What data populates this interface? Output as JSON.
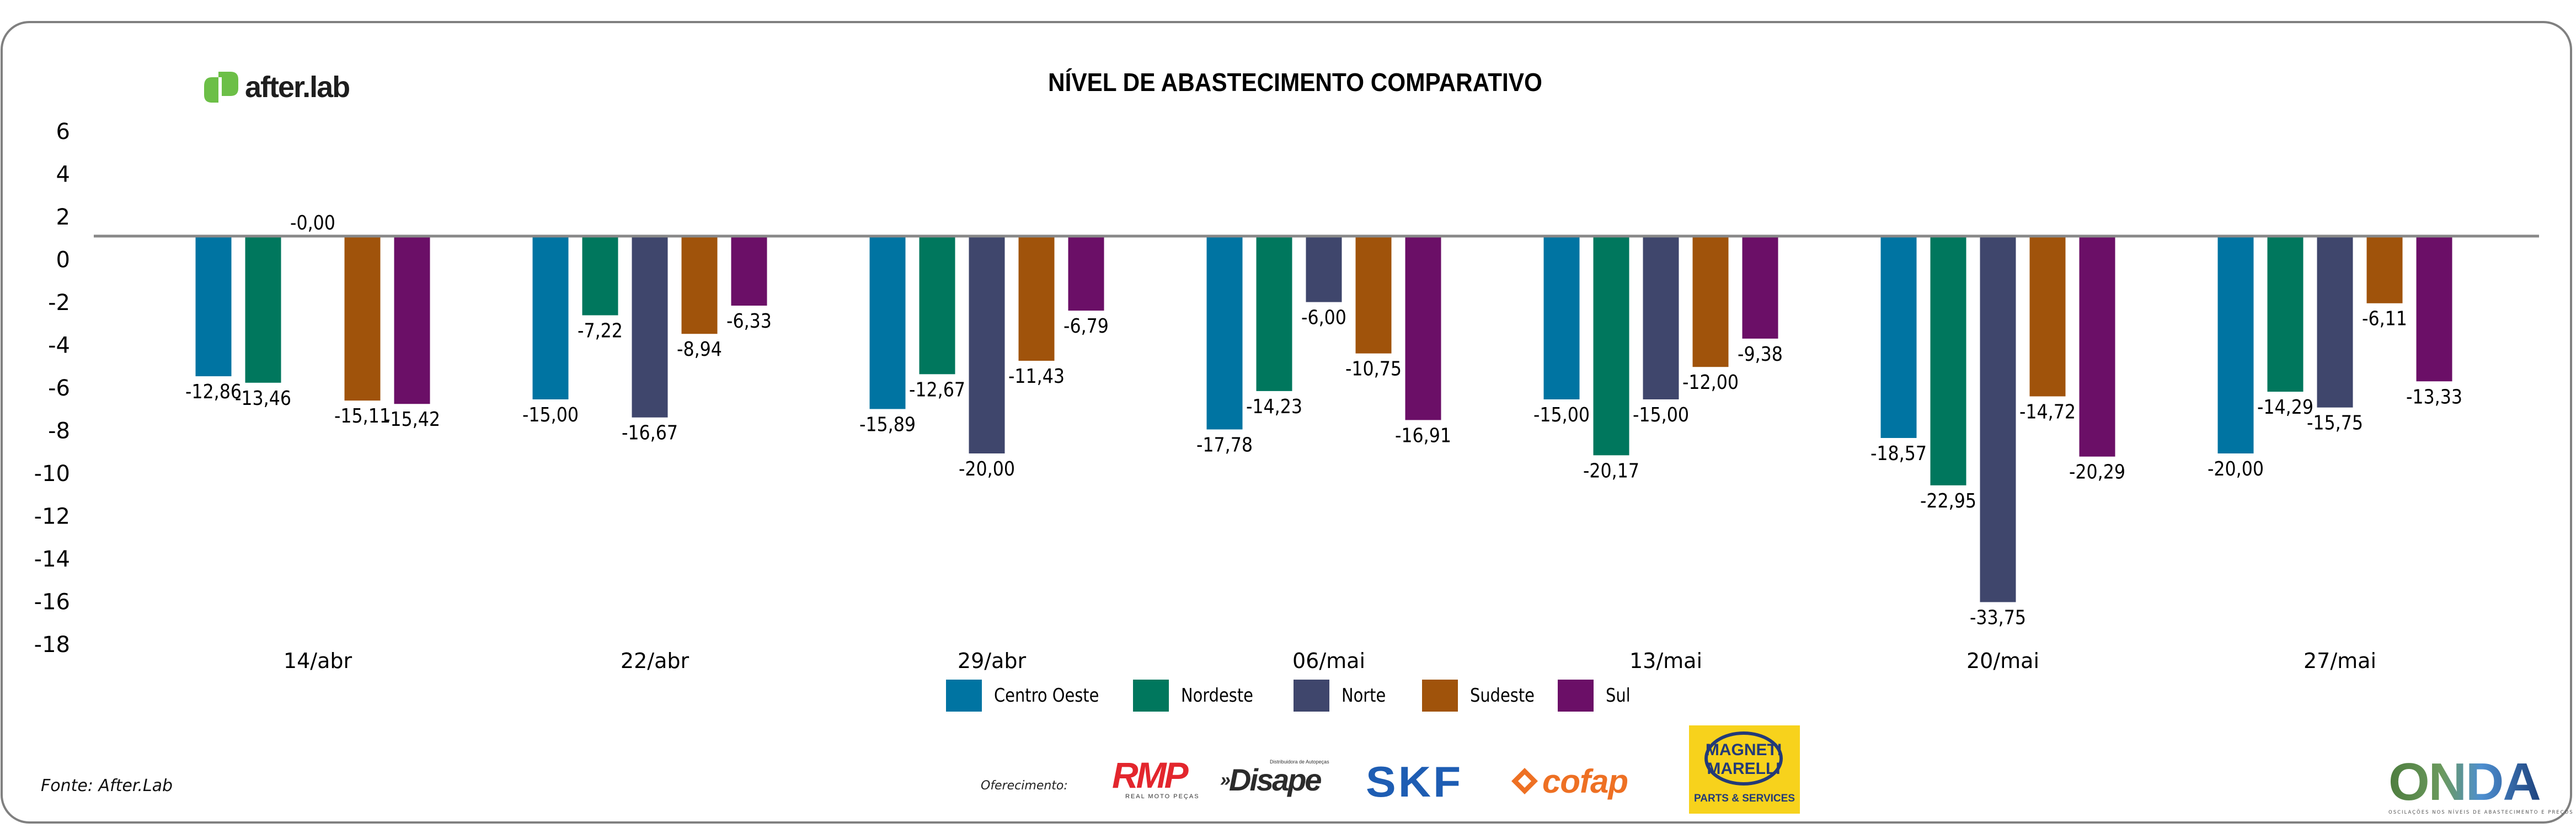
{
  "header": {
    "logo_text": "after.lab",
    "title": "NÍVEL DE ABASTECIMENTO COMPARATIVO"
  },
  "colors": {
    "Centro Oeste": "#0074a2",
    "Nordeste": "#00775d",
    "Norte": "#3f466c",
    "Sudeste": "#a0530b",
    "Sul": "#6b0f67",
    "axis": "#888888",
    "frame": "#808080"
  },
  "chart_data": {
    "type": "bar",
    "title": "NÍVEL DE ABASTECIMENTO COMPARATIVO",
    "xlabel": "",
    "ylabel": "",
    "ylim": [
      -18,
      6
    ],
    "yticks": [
      "6",
      "4",
      "2",
      "0",
      "-2",
      "-4",
      "-6",
      "-8",
      "-10",
      "-12",
      "-14",
      "-16",
      "-18"
    ],
    "grid": false,
    "legend_position": "bottom-center",
    "categories": [
      "14/abr",
      "22/abr",
      "29/abr",
      "06/mai",
      "13/mai",
      "20/mai",
      "27/mai"
    ],
    "series": [
      {
        "name": "Centro Oeste",
        "values": [
          -12.86,
          -15.0,
          -15.89,
          -17.78,
          -15.0,
          -18.57,
          -20.0
        ],
        "labels": [
          "-12,86",
          "-15,00",
          "-15,89",
          "-17,78",
          "-15,00",
          "-18,57",
          "-20,00"
        ]
      },
      {
        "name": "Nordeste",
        "values": [
          -13.46,
          -7.22,
          -12.67,
          -14.23,
          -20.17,
          -22.95,
          -14.29
        ],
        "labels": [
          "-13,46",
          "-7,22",
          "-12,67",
          "-14,23",
          "-20,17",
          "-22,95",
          "-14,29"
        ]
      },
      {
        "name": "Norte",
        "values": [
          0.0,
          -16.67,
          -20.0,
          -6.0,
          -15.0,
          -33.75,
          -15.75
        ],
        "labels": [
          "-0,00",
          "-16,67",
          "-20,00",
          "-6,00",
          "-15,00",
          "-33,75",
          "-15,75"
        ]
      },
      {
        "name": "Sudeste",
        "values": [
          -15.11,
          -8.94,
          -11.43,
          -10.75,
          -12.0,
          -14.72,
          -6.11
        ],
        "labels": [
          "-15,11",
          "-8,94",
          "-11,43",
          "-10,75",
          "-12,00",
          "-14,72",
          "-6,11"
        ]
      },
      {
        "name": "Sul",
        "values": [
          -15.42,
          -6.33,
          -6.79,
          -16.91,
          -9.38,
          -20.29,
          -13.33
        ],
        "labels": [
          "-15,42",
          "-6,33",
          "-6,79",
          "-16,91",
          "-9,38",
          "-20,29",
          "-13,33"
        ]
      }
    ]
  },
  "legend": {
    "items": [
      {
        "label": "Centro Oeste"
      },
      {
        "label": "Nordeste"
      },
      {
        "label": "Norte"
      },
      {
        "label": "Sudeste"
      },
      {
        "label": "Sul"
      }
    ]
  },
  "footer": {
    "source": "Fonte: After.Lab",
    "sponsor_label": "Oferecimento:",
    "sponsors": {
      "rmp": "RMP",
      "rmp_sub": "REAL MOTO PEÇAS",
      "disape": "Disape",
      "disape_sub": "Distribuidora de Autopeças",
      "skf": "SKF",
      "cofap": "cofap",
      "marelli_line1": "MAGNETI",
      "marelli_line2": "MARELLI",
      "marelli_sub": "PARTS & SERVICES"
    },
    "onda": "ONDA",
    "onda_sub": "OSCILAÇÕES NOS NÍVEIS DE ABASTECIMENTO E PREÇOS"
  }
}
